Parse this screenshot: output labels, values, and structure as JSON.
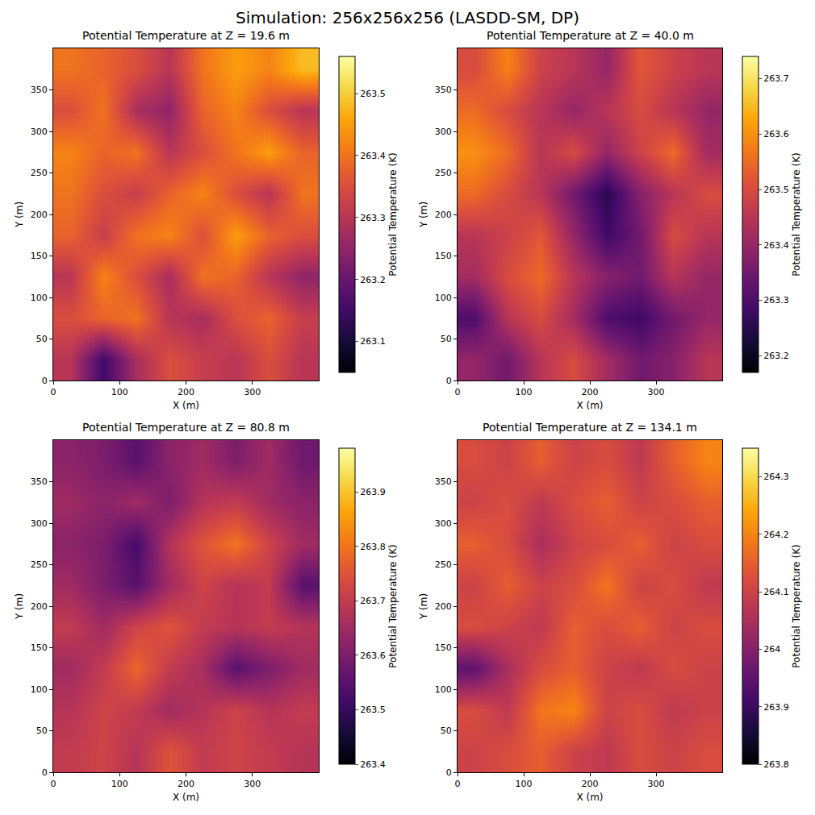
{
  "title": "Simulation: 256x256x256 (LASDD-SM, DP)",
  "chart_data": [
    {
      "type": "heatmap",
      "title": "Potential Temperature at Z = 19.6 m",
      "x_label": "X (m)",
      "y_label": "Y (m)",
      "color": "inferno",
      "x": [
        25,
        75,
        125,
        175,
        225,
        275,
        325,
        375
      ],
      "y": [
        25,
        75,
        125,
        175,
        225,
        275,
        325,
        375
      ],
      "z": [
        [
          263.3,
          263.15,
          263.28,
          263.35,
          263.32,
          263.3,
          263.35,
          263.3
        ],
        [
          263.35,
          263.38,
          263.4,
          263.3,
          263.28,
          263.35,
          263.38,
          263.32
        ],
        [
          263.3,
          263.42,
          263.35,
          263.28,
          263.4,
          263.38,
          263.3,
          263.25
        ],
        [
          263.38,
          263.32,
          263.4,
          263.42,
          263.35,
          263.45,
          263.38,
          263.35
        ],
        [
          263.4,
          263.35,
          263.32,
          263.38,
          263.42,
          263.35,
          263.3,
          263.4
        ],
        [
          263.42,
          263.38,
          263.4,
          263.3,
          263.35,
          263.4,
          263.45,
          263.38
        ],
        [
          263.35,
          263.4,
          263.28,
          263.25,
          263.38,
          263.42,
          263.35,
          263.3
        ],
        [
          263.4,
          263.38,
          263.35,
          263.3,
          263.4,
          263.45,
          263.42,
          263.48
        ]
      ],
      "xlim": [
        0,
        400
      ],
      "ylim": [
        0,
        400
      ],
      "xticks": [
        0,
        100,
        200,
        300
      ],
      "yticks": [
        0,
        50,
        100,
        150,
        200,
        250,
        300,
        350
      ],
      "colorbar": {
        "label": "Potential Temperature (K)",
        "range": [
          263.05,
          263.56
        ],
        "ticks": [
          263.1,
          263.2,
          263.3,
          263.4,
          263.5
        ]
      }
    },
    {
      "type": "heatmap",
      "title": "Potential Temperature at Z = 40.0 m",
      "x_label": "X (m)",
      "y_label": "Y (m)",
      "color": "inferno",
      "x": [
        25,
        75,
        125,
        175,
        225,
        275,
        325,
        375
      ],
      "y": [
        25,
        75,
        125,
        175,
        225,
        275,
        325,
        375
      ],
      "z": [
        [
          263.4,
          263.35,
          263.45,
          263.5,
          263.42,
          263.35,
          263.38,
          263.45
        ],
        [
          263.3,
          263.45,
          263.5,
          263.42,
          263.3,
          263.28,
          263.35,
          263.4
        ],
        [
          263.42,
          263.5,
          263.55,
          263.45,
          263.38,
          263.35,
          263.45,
          263.4
        ],
        [
          263.45,
          263.48,
          263.52,
          263.4,
          263.28,
          263.35,
          263.5,
          263.45
        ],
        [
          263.55,
          263.5,
          263.45,
          263.35,
          263.25,
          263.38,
          263.45,
          263.5
        ],
        [
          263.6,
          263.55,
          263.45,
          263.5,
          263.4,
          263.48,
          263.55,
          263.42
        ],
        [
          263.55,
          263.5,
          263.45,
          263.4,
          263.45,
          263.5,
          263.45,
          263.4
        ],
        [
          263.5,
          263.58,
          263.48,
          263.45,
          263.4,
          263.52,
          263.48,
          263.45
        ]
      ],
      "xlim": [
        0,
        400
      ],
      "ylim": [
        0,
        400
      ],
      "xticks": [
        0,
        100,
        200,
        300
      ],
      "yticks": [
        0,
        50,
        100,
        150,
        200,
        250,
        300,
        350
      ],
      "colorbar": {
        "label": "Potential Temperature (K)",
        "range": [
          263.17,
          263.74
        ],
        "ticks": [
          263.2,
          263.3,
          263.4,
          263.5,
          263.6,
          263.7
        ]
      }
    },
    {
      "type": "heatmap",
      "title": "Potential Temperature at Z = 80.8 m",
      "x_label": "X (m)",
      "y_label": "Y (m)",
      "color": "inferno",
      "x": [
        25,
        75,
        125,
        175,
        225,
        275,
        325,
        375
      ],
      "y": [
        25,
        75,
        125,
        175,
        225,
        275,
        325,
        375
      ],
      "z": [
        [
          263.7,
          263.72,
          263.68,
          263.75,
          263.7,
          263.72,
          263.7,
          263.68
        ],
        [
          263.68,
          263.72,
          263.7,
          263.65,
          263.68,
          263.72,
          263.68,
          263.7
        ],
        [
          263.65,
          263.7,
          263.78,
          263.7,
          263.66,
          263.55,
          263.6,
          263.65
        ],
        [
          263.7,
          263.65,
          263.72,
          263.75,
          263.7,
          263.68,
          263.7,
          263.68
        ],
        [
          263.65,
          263.6,
          263.55,
          263.65,
          263.72,
          263.68,
          263.7,
          263.55
        ],
        [
          263.62,
          263.6,
          263.52,
          263.68,
          263.75,
          263.8,
          263.72,
          263.65
        ],
        [
          263.65,
          263.62,
          263.65,
          263.6,
          263.68,
          263.7,
          263.65,
          263.62
        ],
        [
          263.62,
          263.6,
          263.55,
          263.62,
          263.65,
          263.6,
          263.65,
          263.58
        ]
      ],
      "xlim": [
        0,
        400
      ],
      "ylim": [
        0,
        400
      ],
      "xticks": [
        0,
        100,
        200,
        300
      ],
      "yticks": [
        0,
        50,
        100,
        150,
        200,
        250,
        300,
        350
      ],
      "colorbar": {
        "label": "Potential Temperature (K)",
        "range": [
          263.4,
          263.98
        ],
        "ticks": [
          263.4,
          263.5,
          263.6,
          263.7,
          263.8,
          263.9
        ]
      }
    },
    {
      "type": "heatmap",
      "title": "Potential Temperature at Z = 134.1 m",
      "x_label": "X (m)",
      "y_label": "Y (m)",
      "color": "inferno",
      "x": [
        25,
        75,
        125,
        175,
        225,
        275,
        325,
        375
      ],
      "y": [
        25,
        75,
        125,
        175,
        225,
        275,
        325,
        375
      ],
      "z": [
        [
          264.1,
          264.12,
          264.15,
          264.1,
          264.08,
          264.12,
          264.1,
          264.12
        ],
        [
          264.12,
          264.08,
          264.18,
          264.2,
          264.1,
          264.12,
          264.08,
          264.1
        ],
        [
          263.95,
          264.05,
          264.12,
          264.15,
          264.1,
          264.08,
          264.12,
          264.1
        ],
        [
          264.12,
          264.1,
          264.08,
          264.15,
          264.12,
          264.15,
          264.1,
          264.12
        ],
        [
          264.1,
          264.15,
          264.1,
          264.12,
          264.18,
          264.1,
          264.12,
          264.08
        ],
        [
          264.15,
          264.12,
          264.05,
          264.1,
          264.12,
          264.15,
          264.1,
          264.12
        ],
        [
          264.1,
          264.12,
          264.08,
          264.12,
          264.15,
          264.1,
          264.12,
          264.15
        ],
        [
          264.12,
          264.1,
          264.15,
          264.1,
          264.12,
          264.08,
          264.15,
          264.2
        ]
      ],
      "xlim": [
        0,
        400
      ],
      "ylim": [
        0,
        400
      ],
      "xticks": [
        0,
        100,
        200,
        300
      ],
      "yticks": [
        0,
        50,
        100,
        150,
        200,
        250,
        300,
        350
      ],
      "colorbar": {
        "label": "Potential Temperature (K)",
        "range": [
          263.8,
          264.35
        ],
        "ticks": [
          263.8,
          263.9,
          264.0,
          264.1,
          264.2,
          264.3
        ]
      }
    }
  ]
}
